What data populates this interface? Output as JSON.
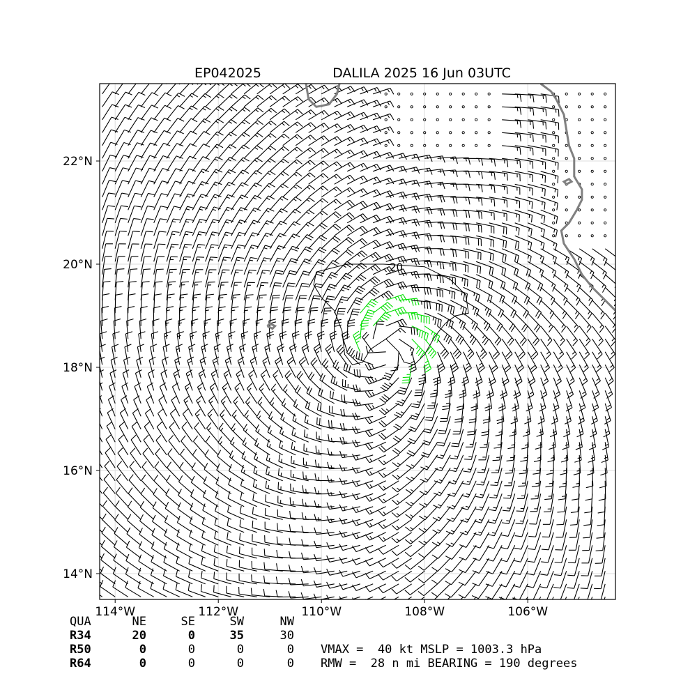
{
  "header": {
    "storm_id": "EP042025",
    "storm_title": "DALILA 2025 16 Jun 03UTC"
  },
  "chart_data": {
    "type": "wind_barbs",
    "xlim": [
      -114.3,
      -104.3
    ],
    "ylim": [
      13.5,
      23.5
    ],
    "x_ticks": [
      {
        "value": -114,
        "label": "114°W"
      },
      {
        "value": -112,
        "label": "112°W"
      },
      {
        "value": -110,
        "label": "110°W"
      },
      {
        "value": -108,
        "label": "108°W"
      },
      {
        "value": -106,
        "label": "106°W"
      }
    ],
    "y_ticks": [
      {
        "value": 14,
        "label": "14°N"
      },
      {
        "value": 16,
        "label": "16°N"
      },
      {
        "value": 18,
        "label": "18°N"
      },
      {
        "value": 20,
        "label": "20°N"
      },
      {
        "value": 22,
        "label": "22°N"
      }
    ],
    "grid": true,
    "storm_center": {
      "lon": -108.7,
      "lat": 18.45
    },
    "max_wind_kt": 40,
    "highlight_threshold_kt": 34,
    "colors": {
      "barb": "#000000",
      "highlight_barb": "#00e000",
      "coast": "#808080",
      "grid": "#dddddd",
      "contour": "#000000"
    },
    "contour_label": "20",
    "contour_20kt": [
      [
        -110.1,
        19.85
      ],
      [
        -109.5,
        20.0
      ],
      [
        -108.8,
        20.0
      ],
      [
        -108.0,
        19.95
      ],
      [
        -107.5,
        19.7
      ],
      [
        -107.2,
        19.4
      ],
      [
        -107.15,
        19.05
      ],
      [
        -107.4,
        19.0
      ],
      [
        -107.6,
        18.85
      ],
      [
        -107.8,
        18.6
      ],
      [
        -108.0,
        18.25
      ],
      [
        -108.2,
        18.05
      ],
      [
        -108.4,
        18.1
      ],
      [
        -108.5,
        18.3
      ],
      [
        -108.75,
        18.55
      ],
      [
        -109.05,
        18.35
      ],
      [
        -109.2,
        18.1
      ],
      [
        -109.4,
        18.05
      ],
      [
        -109.55,
        18.25
      ],
      [
        -109.6,
        18.7
      ],
      [
        -109.75,
        19.1
      ],
      [
        -110.0,
        19.35
      ],
      [
        -110.15,
        19.6
      ],
      [
        -110.1,
        19.85
      ]
    ],
    "coastlines": [
      [
        [
          -110.3,
          23.5
        ],
        [
          -110.25,
          23.2
        ],
        [
          -110.1,
          23.05
        ],
        [
          -109.85,
          23.1
        ],
        [
          -109.7,
          23.3
        ],
        [
          -109.65,
          23.5
        ]
      ],
      [
        [
          -105.75,
          23.5
        ],
        [
          -105.55,
          23.35
        ],
        [
          -105.45,
          23.2
        ],
        [
          -105.3,
          22.9
        ],
        [
          -105.25,
          22.6
        ],
        [
          -105.2,
          22.3
        ],
        [
          -105.1,
          22.05
        ],
        [
          -105.1,
          21.7
        ],
        [
          -104.95,
          21.45
        ],
        [
          -104.95,
          21.25
        ],
        [
          -105.05,
          21.05
        ],
        [
          -105.2,
          20.8
        ],
        [
          -105.35,
          20.65
        ],
        [
          -105.3,
          20.4
        ],
        [
          -105.1,
          20.1
        ],
        [
          -104.95,
          19.8
        ],
        [
          -104.75,
          19.55
        ],
        [
          -104.55,
          19.35
        ],
        [
          -104.3,
          19.1
        ]
      ],
      [
        [
          -105.25,
          21.55
        ],
        [
          -105.15,
          21.6
        ],
        [
          -105.2,
          21.65
        ],
        [
          -105.3,
          21.6
        ],
        [
          -105.25,
          21.55
        ]
      ],
      [
        [
          -111.05,
          18.8
        ],
        [
          -110.95,
          18.75
        ],
        [
          -110.9,
          18.8
        ],
        [
          -111.0,
          18.85
        ],
        [
          -111.05,
          18.8
        ]
      ]
    ],
    "calm_region_points": "small open circles over land / calm areas near the coast"
  },
  "table": {
    "columns": [
      "QUA",
      "NE",
      "SE",
      "SW",
      "NW"
    ],
    "rows": [
      {
        "label": "R34",
        "values": [
          "20",
          "0",
          "35",
          "30"
        ]
      },
      {
        "label": "R50",
        "values": [
          "0",
          "0",
          "0",
          "0"
        ]
      },
      {
        "label": "R64",
        "values": [
          "0",
          "0",
          "0",
          "0"
        ]
      }
    ]
  },
  "stats": {
    "line1": "VMAX =  40 kt MSLP = 1003.3 hPa",
    "line2": "RMW =  28 n mi BEARING = 190 degrees"
  }
}
